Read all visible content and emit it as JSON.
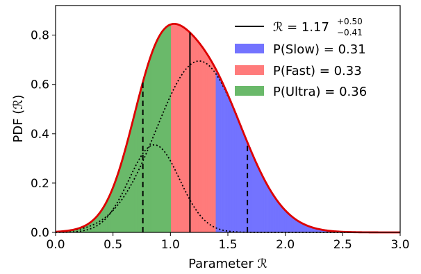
{
  "chart_data": {
    "type": "bar",
    "xlabel": "Parameter ℛ",
    "ylabel": "PDF (ℛ)",
    "xlim": [
      0.0,
      3.0
    ],
    "ylim": [
      0.0,
      0.92
    ],
    "xticks": [
      "0.0",
      "0.5",
      "1.0",
      "1.5",
      "2.0",
      "2.5",
      "3.0"
    ],
    "yticks": [
      "0.0",
      "0.2",
      "0.4",
      "0.6",
      "0.8"
    ],
    "grid": false,
    "legend_position": "top-right",
    "regions": [
      {
        "name": "P(Ultra) = 0.36",
        "from": 0.0,
        "to": 1.01,
        "color": "#6ab96a"
      },
      {
        "name": "P(Fast) = 0.33",
        "from": 1.01,
        "to": 1.39,
        "color": "#ff7b7b"
      },
      {
        "name": "P(Slow) = 0.31",
        "from": 1.39,
        "to": 3.0,
        "color": "#7373ff"
      }
    ],
    "median": {
      "value": 1.17,
      "plus": 0.5,
      "minus": 0.41,
      "label_base": "ℛ = 1.17",
      "label_plus": "+0.50",
      "label_minus": "−0.41"
    },
    "interval_lines": [
      0.76,
      1.67
    ],
    "components": [
      {
        "mu": 0.86,
        "sigma": 0.22,
        "amp": 0.355
      },
      {
        "mu": 1.25,
        "sigma": 0.37,
        "amp": 0.695
      }
    ],
    "fit_curve_color": "#dd0000"
  }
}
